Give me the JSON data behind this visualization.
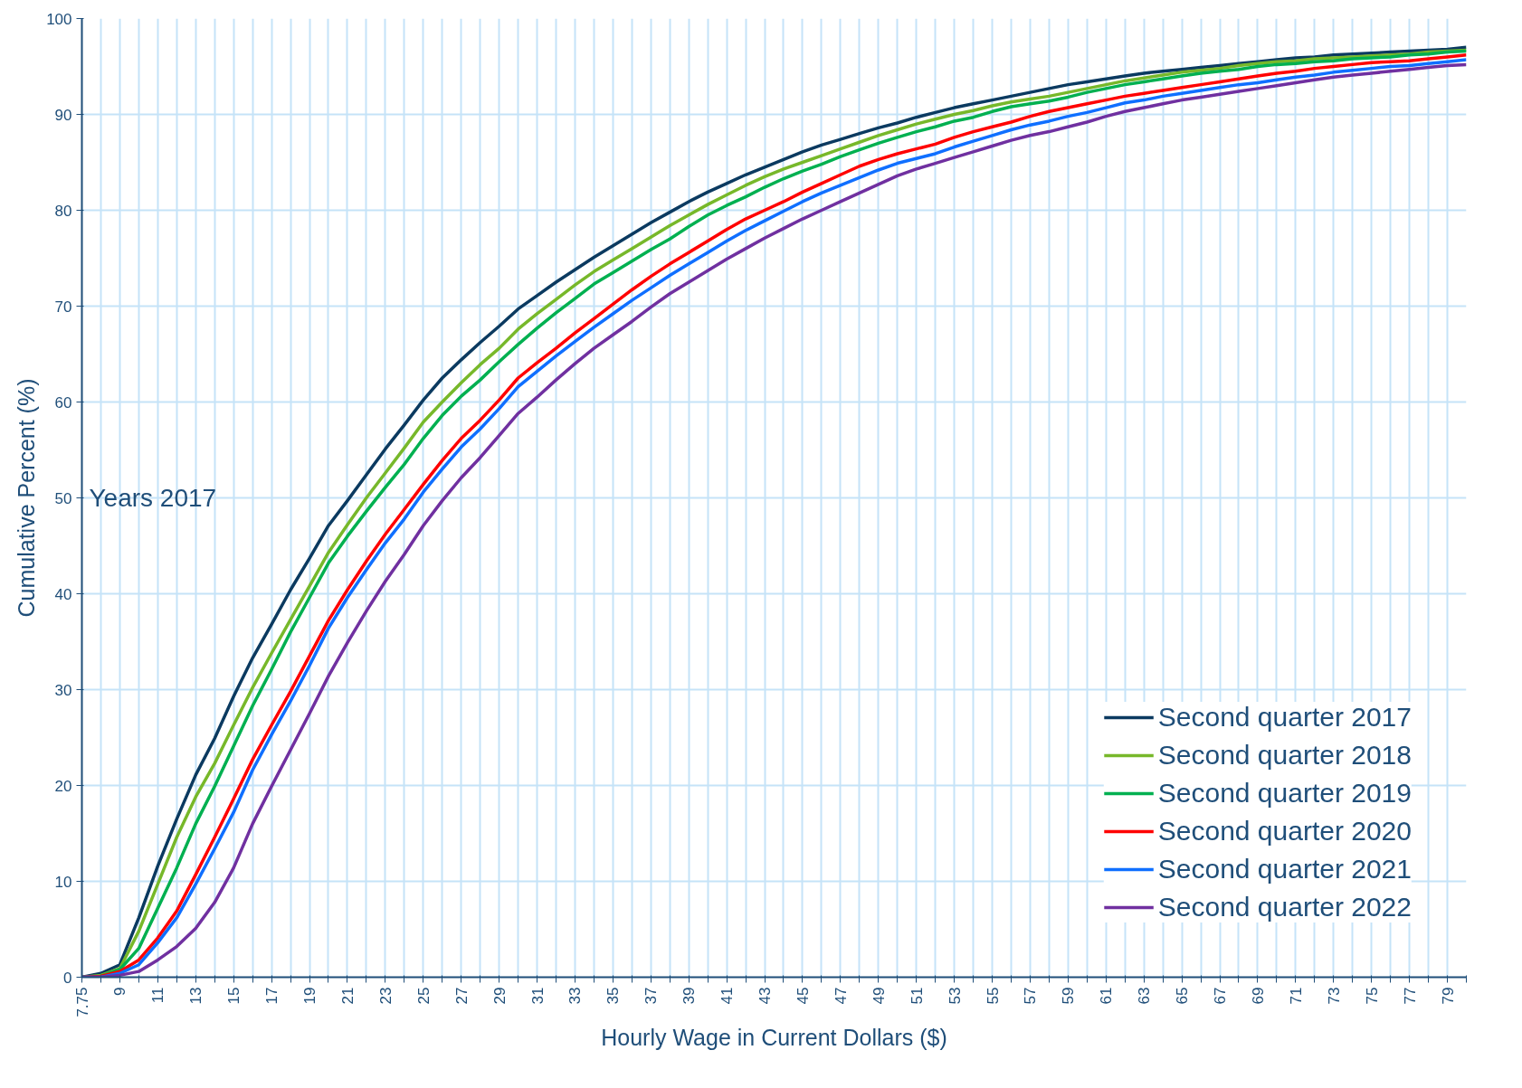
{
  "chart_data": {
    "type": "line",
    "xlabel": "Hourly Wage in Current Dollars ($)",
    "ylabel": "Cumulative Percent (%)",
    "annotations": [
      "Years 2017"
    ],
    "categories": [
      "7.75",
      null,
      "9",
      null,
      "11",
      null,
      "13",
      null,
      "15",
      null,
      "17",
      null,
      "19",
      null,
      "21",
      null,
      "23",
      null,
      "25",
      null,
      "27",
      null,
      "29",
      null,
      "31",
      null,
      "33",
      null,
      "35",
      null,
      "37",
      null,
      "39",
      null,
      "41",
      null,
      "43",
      null,
      "45",
      null,
      "47",
      null,
      "49",
      null,
      "51",
      null,
      "53",
      null,
      "55",
      null,
      "57",
      null,
      "59",
      null,
      "61",
      null,
      "63",
      null,
      "65",
      null,
      "67",
      null,
      "69",
      null,
      "71",
      null,
      "73",
      null,
      "75",
      null,
      "77",
      null,
      "79",
      null
    ],
    "series": [
      {
        "name": "Second quarter 2017",
        "color": "#0b3a60",
        "values": [
          0,
          0.4,
          1.3,
          6.2,
          11.6,
          16.5,
          21.1,
          24.9,
          29.3,
          33.3,
          36.8,
          40.4,
          43.7,
          47.1,
          49.7,
          52.4,
          55.1,
          57.6,
          60.2,
          62.5,
          64.4,
          66.2,
          67.9,
          69.7,
          71.1,
          72.5,
          73.8,
          75.1,
          76.3,
          77.5,
          78.7,
          79.8,
          80.9,
          81.9,
          82.8,
          83.7,
          84.5,
          85.3,
          86.1,
          86.8,
          87.4,
          88.0,
          88.6,
          89.1,
          89.7,
          90.2,
          90.7,
          91.1,
          91.5,
          91.9,
          92.3,
          92.7,
          93.1,
          93.4,
          93.7,
          94.0,
          94.3,
          94.5,
          94.7,
          94.9,
          95.1,
          95.3,
          95.5,
          95.7,
          95.9,
          96.0,
          96.2,
          96.3,
          96.4,
          96.5,
          96.6,
          96.7,
          96.8,
          97.0
        ]
      },
      {
        "name": "Second quarter 2018",
        "color": "#77b82a",
        "values": [
          0,
          0.2,
          0.9,
          4.8,
          9.7,
          14.6,
          18.8,
          22.3,
          26.3,
          30.2,
          33.8,
          37.3,
          40.8,
          44.3,
          47.2,
          50.0,
          52.6,
          55.2,
          57.9,
          60.0,
          62.0,
          63.9,
          65.6,
          67.6,
          69.2,
          70.7,
          72.2,
          73.6,
          74.8,
          76.0,
          77.2,
          78.4,
          79.5,
          80.6,
          81.6,
          82.6,
          83.5,
          84.3,
          85.0,
          85.7,
          86.4,
          87.1,
          87.8,
          88.4,
          89.0,
          89.5,
          90.0,
          90.4,
          90.9,
          91.3,
          91.6,
          91.9,
          92.3,
          92.7,
          93.1,
          93.5,
          93.8,
          94.1,
          94.4,
          94.6,
          94.8,
          95.1,
          95.3,
          95.5,
          95.6,
          95.8,
          95.9,
          96.0,
          96.1,
          96.2,
          96.3,
          96.5,
          96.6,
          96.7
        ]
      },
      {
        "name": "Second quarter 2019",
        "color": "#00b050",
        "values": [
          0,
          0.1,
          0.8,
          3.0,
          7.2,
          11.4,
          16.0,
          19.9,
          24.1,
          28.3,
          32.1,
          36.0,
          39.6,
          43.2,
          46.0,
          48.6,
          51.1,
          53.5,
          56.2,
          58.6,
          60.6,
          62.3,
          64.2,
          66.0,
          67.7,
          69.3,
          70.8,
          72.3,
          73.5,
          74.7,
          75.9,
          77.0,
          78.3,
          79.5,
          80.5,
          81.4,
          82.4,
          83.3,
          84.1,
          84.8,
          85.6,
          86.3,
          87.0,
          87.6,
          88.2,
          88.7,
          89.3,
          89.7,
          90.3,
          90.8,
          91.1,
          91.4,
          91.8,
          92.3,
          92.7,
          93.1,
          93.4,
          93.7,
          94.0,
          94.3,
          94.5,
          94.7,
          95.0,
          95.2,
          95.3,
          95.5,
          95.6,
          95.8,
          95.9,
          96.0,
          96.2,
          96.3,
          96.5,
          96.6
        ]
      },
      {
        "name": "Second quarter 2020",
        "color": "#ff0000",
        "values": [
          0,
          0.1,
          0.6,
          1.8,
          4.1,
          6.9,
          10.7,
          14.6,
          18.6,
          22.7,
          26.3,
          29.8,
          33.5,
          37.2,
          40.4,
          43.4,
          46.2,
          48.8,
          51.4,
          53.9,
          56.2,
          58.1,
          60.2,
          62.5,
          64.1,
          65.6,
          67.2,
          68.7,
          70.2,
          71.7,
          73.1,
          74.4,
          75.6,
          76.8,
          78.0,
          79.1,
          80.0,
          80.9,
          81.9,
          82.8,
          83.7,
          84.6,
          85.3,
          85.9,
          86.4,
          86.9,
          87.6,
          88.2,
          88.7,
          89.2,
          89.8,
          90.3,
          90.7,
          91.1,
          91.5,
          91.9,
          92.2,
          92.5,
          92.8,
          93.1,
          93.4,
          93.7,
          94.0,
          94.3,
          94.5,
          94.8,
          95.0,
          95.2,
          95.4,
          95.5,
          95.6,
          95.8,
          96.0,
          96.2
        ]
      },
      {
        "name": "Second quarter 2021",
        "color": "#0f6fff",
        "values": [
          0,
          0,
          0.4,
          1.3,
          3.6,
          6.2,
          9.7,
          13.4,
          17.2,
          21.6,
          25.3,
          28.8,
          32.5,
          36.4,
          39.6,
          42.5,
          45.3,
          47.8,
          50.6,
          53.0,
          55.3,
          57.2,
          59.3,
          61.6,
          63.2,
          64.8,
          66.3,
          67.8,
          69.2,
          70.6,
          71.9,
          73.2,
          74.4,
          75.6,
          76.8,
          77.9,
          78.9,
          79.9,
          80.9,
          81.8,
          82.6,
          83.4,
          84.2,
          84.9,
          85.4,
          85.9,
          86.6,
          87.2,
          87.8,
          88.4,
          88.9,
          89.3,
          89.8,
          90.2,
          90.7,
          91.2,
          91.5,
          91.9,
          92.2,
          92.5,
          92.8,
          93.1,
          93.3,
          93.6,
          93.9,
          94.1,
          94.4,
          94.6,
          94.8,
          95.0,
          95.1,
          95.3,
          95.5,
          95.7
        ]
      },
      {
        "name": "Second quarter 2022",
        "color": "#7030a0",
        "values": [
          0,
          0,
          0.2,
          0.6,
          1.8,
          3.2,
          5.1,
          7.8,
          11.4,
          16.0,
          19.9,
          23.7,
          27.5,
          31.4,
          34.9,
          38.2,
          41.3,
          44.1,
          47.1,
          49.7,
          52.1,
          54.2,
          56.5,
          58.8,
          60.5,
          62.3,
          64.0,
          65.6,
          67.0,
          68.4,
          69.9,
          71.3,
          72.5,
          73.7,
          74.9,
          76.0,
          77.1,
          78.1,
          79.1,
          80.0,
          80.9,
          81.8,
          82.7,
          83.6,
          84.3,
          84.9,
          85.5,
          86.1,
          86.7,
          87.3,
          87.8,
          88.2,
          88.7,
          89.2,
          89.8,
          90.3,
          90.7,
          91.1,
          91.5,
          91.8,
          92.1,
          92.4,
          92.7,
          93.0,
          93.3,
          93.6,
          93.9,
          94.1,
          94.3,
          94.5,
          94.7,
          94.9,
          95.1,
          95.2
        ]
      }
    ],
    "ylim": [
      0,
      100
    ],
    "yticks": [
      0,
      10,
      20,
      30,
      40,
      50,
      60,
      70,
      80,
      90,
      100
    ],
    "grid": true,
    "legend": "bottom right",
    "line_style": "solid"
  }
}
